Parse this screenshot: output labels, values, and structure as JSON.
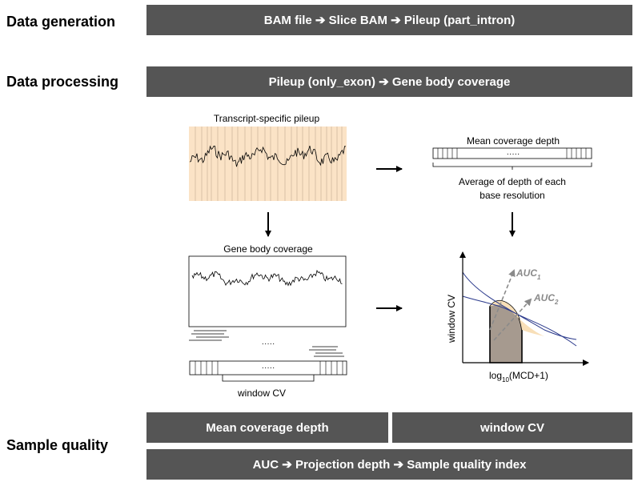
{
  "sections": {
    "generation": {
      "label": "Data generation",
      "flow": "BAM file ➔ Slice BAM ➔ Pileup (part_intron)"
    },
    "processing": {
      "label": "Data processing",
      "flow": "Pileup (only_exon) ➔ Gene body coverage"
    },
    "quality": {
      "label": "Sample quality",
      "box_left": "Mean coverage depth",
      "box_right": "window CV",
      "flow": "AUC ➔ Projection depth ➔ Sample quality index"
    }
  },
  "diagram": {
    "pileup_title": "Transcript-specific pileup",
    "mcd_title": "Mean coverage depth",
    "mcd_dots": "·····",
    "mcd_note_line1": "Average of depth of each",
    "mcd_note_line2": "base resolution",
    "coverage_title": "Gene body coverage",
    "coverage_dots": "·····",
    "window_dots": "·····",
    "window_label": "window CV",
    "plot_ylabel": "window CV",
    "plot_xlabel_prefix": "log",
    "plot_xlabel_sub": "10",
    "plot_xlabel_suffix": "(MCD+1)",
    "auc1_main": "AUC",
    "auc1_sub": "1",
    "auc2_main": "AUC",
    "auc2_sub": "2"
  },
  "colors": {
    "bar": "#555555",
    "pileup_bg": "#fbe3c6",
    "auc1_fill": "#f8dfb8",
    "auc2_fill": "#a69a8f",
    "curve": "#2b3a8c",
    "dashed": "#8a8a8a"
  }
}
